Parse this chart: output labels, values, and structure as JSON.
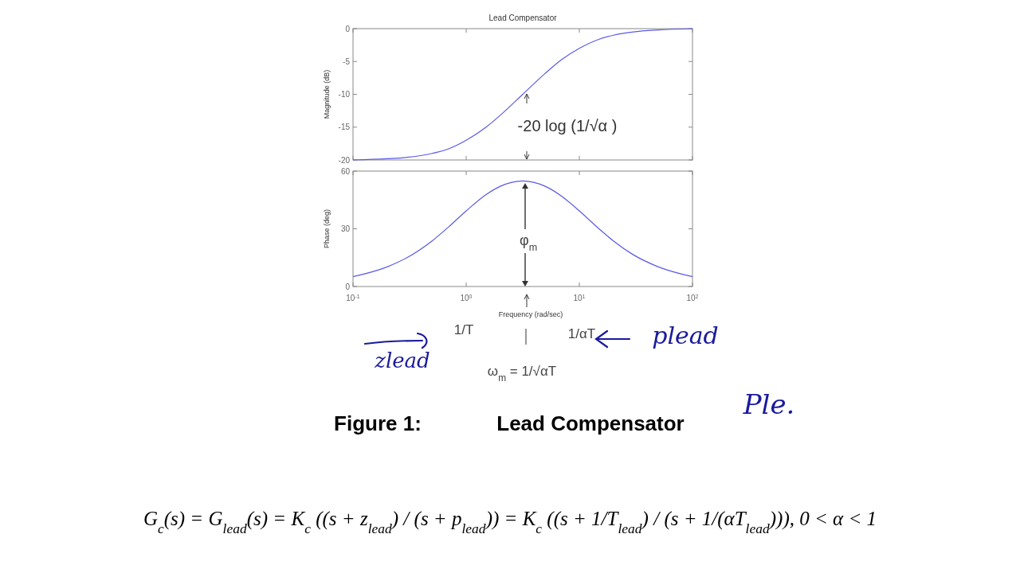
{
  "chart_data": [
    {
      "type": "line",
      "title": "Lead Compensator",
      "ylabel": "Magnitude (dB)",
      "log": "x",
      "xlim": [
        0.1,
        100
      ],
      "ylim": [
        -20,
        0
      ],
      "xticks": [
        {
          "value": 0.1,
          "label": null
        },
        {
          "value": 1,
          "label": null
        },
        {
          "value": 10,
          "label": null
        },
        {
          "value": 100,
          "label": null
        }
      ],
      "yticks": [
        -20,
        -15,
        -10,
        -5,
        0
      ],
      "tick_labels": "y",
      "grid": false,
      "marker": "none",
      "line_style": "solid",
      "x": [
        0.1,
        0.2,
        0.3,
        0.5,
        0.7,
        1,
        1.5,
        2,
        3.16,
        5,
        7,
        10,
        15,
        20,
        30,
        50,
        100
      ],
      "series": [
        {
          "color": "#5a5ae6",
          "values": [
            -20.0,
            -19.8,
            -19.6,
            -19.0,
            -18.3,
            -17.0,
            -15.0,
            -13.2,
            -10.0,
            -6.8,
            -4.7,
            -3.0,
            -1.6,
            -1.0,
            -0.5,
            -0.2,
            0.0
          ]
        }
      ],
      "annotations": [
        "-20 log (1/√α )"
      ]
    },
    {
      "type": "line",
      "xlabel": "Frequency (rad/sec)",
      "ylabel": "Phase (deg)",
      "log": "x",
      "xlim": [
        0.1,
        100
      ],
      "ylim": [
        0,
        60
      ],
      "xticks": [
        {
          "value": 0.1,
          "label": "10$^{-1}$"
        },
        {
          "value": 1,
          "label": "10$^{0}$"
        },
        {
          "value": 10,
          "label": "10$^{1}$"
        },
        {
          "value": 100,
          "label": "10$^{2}$"
        }
      ],
      "yticks": [
        0,
        30,
        60
      ],
      "grid": false,
      "marker": "none",
      "line_style": "solid",
      "x": [
        0.1,
        0.2,
        0.3,
        0.5,
        0.7,
        1,
        1.5,
        2,
        3.16,
        5,
        7,
        10,
        15,
        20,
        30,
        50,
        100
      ],
      "series": [
        {
          "color": "#5a5ae6",
          "values": [
            5.1,
            10.2,
            15.0,
            23.7,
            31.0,
            39.3,
            47.8,
            52.1,
            54.9,
            52.1,
            46.9,
            39.3,
            29.9,
            23.7,
            16.5,
            10.2,
            5.1
          ]
        }
      ],
      "annotations": [
        "φ$_{m}$",
        "1/T",
        "1/αT",
        "ω$_{m}$ = 1/√αT",
        "zlead",
        "plead",
        "Ple.",
        "Figure 1:",
        "Lead Compensator",
        "G$_{c}$(s) = G$_{lead}$(s) = K$_{c}$ ((s + z$_{lead}$) / (s + p$_{lead}$)) = K$_{c}$ ((s + 1/T$_{lead}$) / (s + 1/(αT$_{lead}$))),     0 < α < 1"
      ]
    }
  ]
}
